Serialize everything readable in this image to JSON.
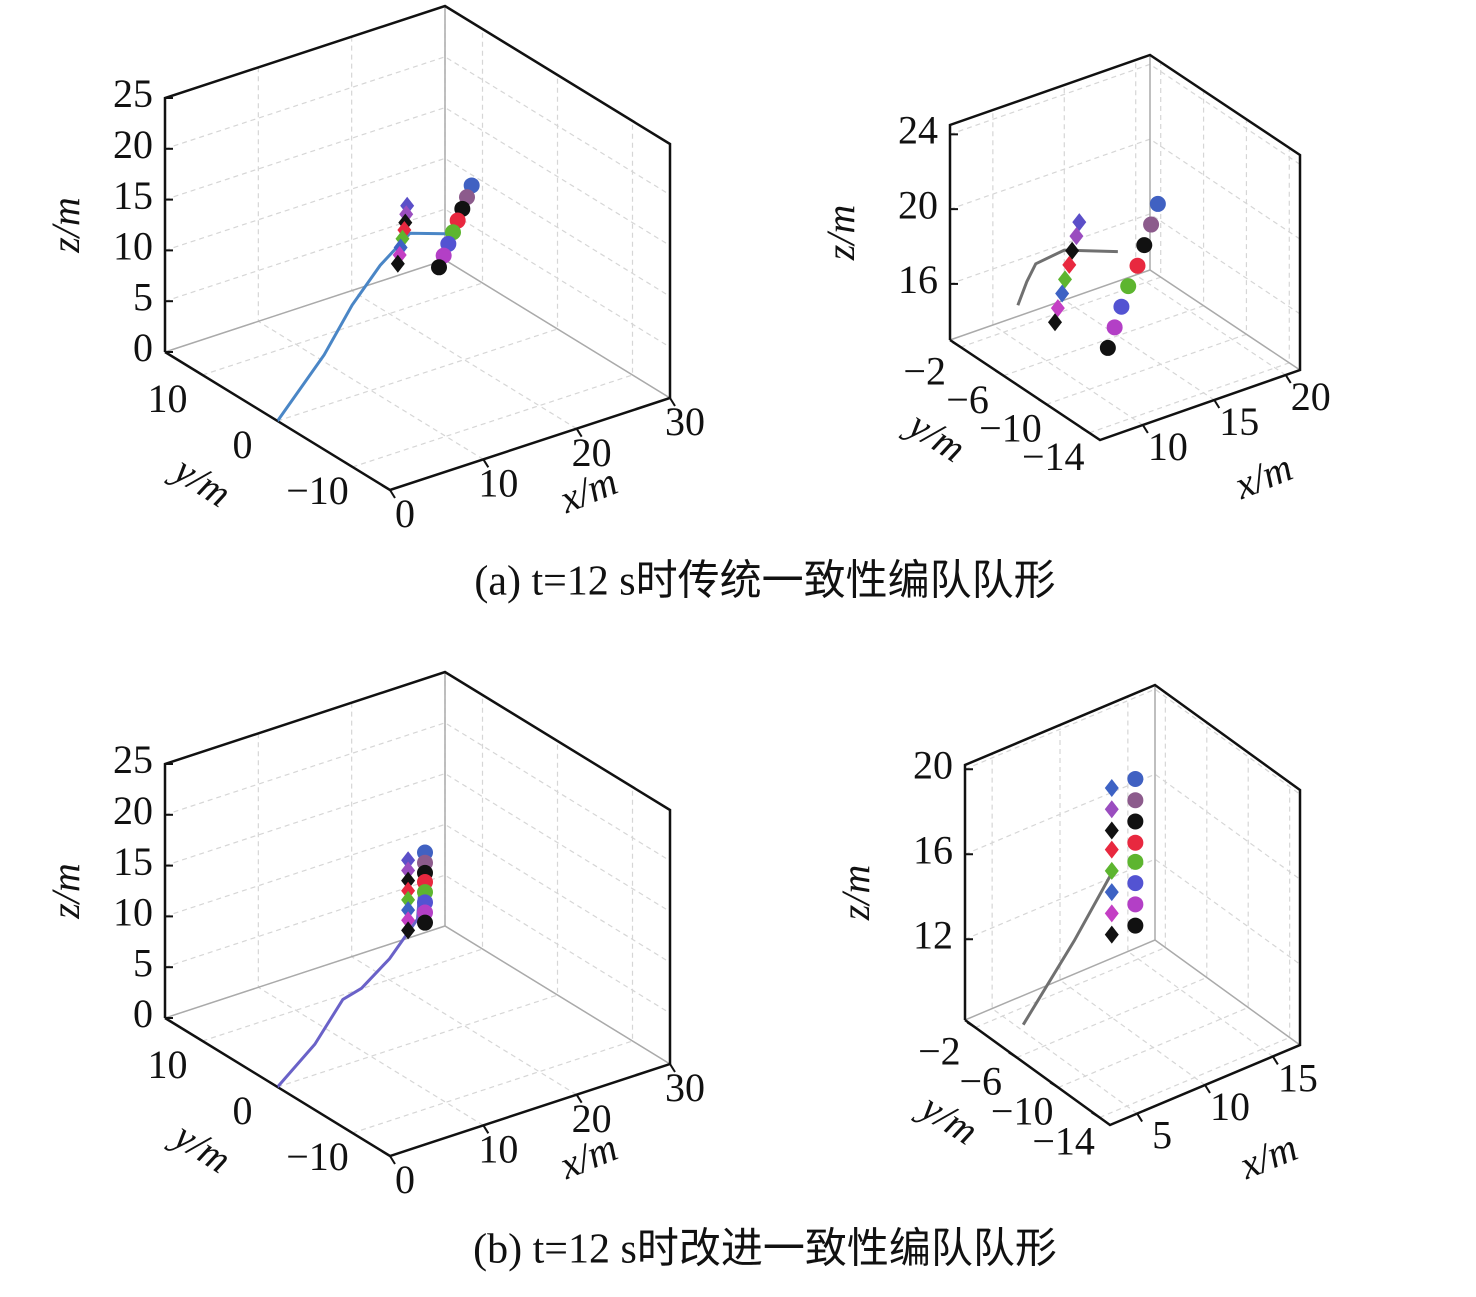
{
  "captions": [
    "(a) t=12 s时传统一致性编队队形",
    "(b) t=12 s时改进一致性编队队形"
  ],
  "chart_data": [
    {
      "type": "scatter3d",
      "xlabel": "x/m",
      "ylabel": "y/m",
      "zlabel": "z/m",
      "grid": true,
      "xlim": [
        0,
        30
      ],
      "ylim": [
        -15,
        15
      ],
      "zlim": [
        0,
        25
      ],
      "xticks": [
        0,
        10,
        20,
        30
      ],
      "yticks": [
        10,
        0,
        {
          "value": -10,
          "label": "−10"
        }
      ],
      "zticks": [
        0,
        5,
        10,
        15,
        20,
        25
      ],
      "trajectory": {
        "color": "#4a86c6",
        "x": [
          0,
          5,
          8,
          11,
          15,
          18
        ],
        "y": [
          0,
          0,
          0,
          0,
          1,
          0
        ],
        "z": [
          0,
          5,
          9,
          12,
          13.5,
          13
        ]
      },
      "series": [
        {
          "marker": "diamond",
          "x": [
            15.5,
            15.4,
            15.3,
            15.2,
            15.0,
            14.8,
            14.7,
            14.5
          ],
          "y": [
            2,
            2,
            2,
            2,
            2,
            2,
            2,
            2
          ],
          "z": [
            15.6,
            14.8,
            14.0,
            13.3,
            12.5,
            11.7,
            11.0,
            10.2
          ],
          "colors": [
            "#5b4fc8",
            "#9a4dbf",
            "#111111",
            "#e8283f",
            "#5db52f",
            "#3d62c4",
            "#c43fc4",
            "#111111"
          ]
        },
        {
          "marker": "circle",
          "x": [
            20,
            19.5,
            19,
            18.5,
            18,
            17.5,
            17,
            16.5
          ],
          "y": [
            -1,
            -1,
            -1,
            -1,
            -1,
            -1,
            -1,
            -1
          ],
          "z": [
            17.6,
            16.6,
            15.6,
            14.6,
            13.6,
            12.6,
            11.6,
            10.6
          ],
          "colors": [
            "#4061c2",
            "#8c5b8c",
            "#111111",
            "#e8283f",
            "#5db52f",
            "#5353d2",
            "#b33fc6",
            "#111111"
          ]
        }
      ]
    },
    {
      "type": "scatter3d",
      "xlabel": "x/m",
      "ylabel": "y/m",
      "zlabel": "z/m",
      "grid": true,
      "xlim": [
        7,
        21
      ],
      "ylim": [
        -15,
        -1
      ],
      "zlim": [
        13,
        24.5
      ],
      "xticks": [
        10,
        15,
        20
      ],
      "yticks": [
        {
          "value": -2,
          "label": "−2"
        },
        {
          "value": -6,
          "label": "−6"
        },
        {
          "value": -10,
          "label": "−10"
        },
        {
          "value": -14,
          "label": "−14"
        }
      ],
      "zticks": [
        16,
        20,
        24
      ],
      "trajectory": {
        "color": "#707070",
        "x": [
          8,
          9,
          10,
          12,
          15
        ],
        "y": [
          -6,
          -5.5,
          -5,
          -5,
          -6
        ],
        "z": [
          16.5,
          17.3,
          17.8,
          18,
          17.5
        ]
      },
      "series": [
        {
          "marker": "diamond",
          "x": [
            12.3,
            12.1,
            11.8,
            11.6,
            11.3,
            11.1,
            10.8,
            10.6
          ],
          "y": [
            -6,
            -6,
            -6,
            -6,
            -6,
            -6,
            -6,
            -6
          ],
          "z": [
            19.8,
            19.1,
            18.4,
            17.7,
            17.0,
            16.3,
            15.6,
            14.9
          ],
          "colors": [
            "#5b4fc8",
            "#9a4dbf",
            "#111111",
            "#e8283f",
            "#5db52f",
            "#3d62c4",
            "#c43fc4",
            "#111111"
          ]
        },
        {
          "marker": "circle",
          "x": [
            17.8,
            17.1,
            16.4,
            15.7,
            14.9,
            14.2,
            13.5,
            12.8
          ],
          "y": [
            -6,
            -6.3,
            -6.6,
            -6.9,
            -7.1,
            -7.4,
            -7.7,
            -8
          ],
          "z": [
            19.3,
            18.5,
            17.7,
            16.9,
            16.1,
            15.3,
            14.5,
            13.7
          ],
          "colors": [
            "#4061c2",
            "#8c5b8c",
            "#111111",
            "#e8283f",
            "#5db52f",
            "#5353d2",
            "#b33fc6",
            "#111111"
          ]
        }
      ]
    },
    {
      "type": "scatter3d",
      "xlabel": "x/m",
      "ylabel": "y/m",
      "zlabel": "z/m",
      "grid": true,
      "xlim": [
        0,
        30
      ],
      "ylim": [
        -15,
        15
      ],
      "zlim": [
        0,
        25
      ],
      "xticks": [
        0,
        10,
        20,
        30
      ],
      "yticks": [
        10,
        0,
        {
          "value": -10,
          "label": "−10"
        }
      ],
      "zticks": [
        0,
        5,
        10,
        15,
        20,
        25
      ],
      "trajectory": {
        "color": "#6a62c8",
        "x": [
          0,
          4,
          7,
          9,
          12,
          15,
          16
        ],
        "y": [
          0,
          0,
          0,
          0,
          0,
          0,
          1
        ],
        "z": [
          0,
          3,
          6.5,
          7,
          9,
          12,
          13.5
        ]
      },
      "series": [
        {
          "marker": "diamond",
          "x": [
            15.6,
            15.6,
            15.6,
            15.6,
            15.6,
            15.6,
            15.6,
            15.6
          ],
          "y": [
            2,
            2,
            2,
            2,
            2,
            2,
            2,
            2
          ],
          "z": [
            16.7,
            15.7,
            14.7,
            13.7,
            12.8,
            11.8,
            10.8,
            9.8
          ],
          "colors": [
            "#5b4fc8",
            "#9a4dbf",
            "#111111",
            "#e8283f",
            "#5db52f",
            "#3d62c4",
            "#c43fc4",
            "#111111"
          ]
        },
        {
          "marker": "circle",
          "x": [
            15,
            15,
            15,
            15,
            15,
            15,
            15,
            15
          ],
          "y": [
            -1,
            -1,
            -1,
            -1,
            -1,
            -1,
            -1,
            -1
          ],
          "z": [
            19,
            18,
            17,
            16.1,
            15.1,
            14.1,
            13.1,
            12.1
          ],
          "colors": [
            "#4061c2",
            "#8c5b8c",
            "#111111",
            "#e8283f",
            "#5db52f",
            "#5353d2",
            "#b33fc6",
            "#111111"
          ]
        }
      ]
    },
    {
      "type": "scatter3d",
      "xlabel": "x/m",
      "ylabel": "y/m",
      "zlabel": "z/m",
      "grid": true,
      "xlim": [
        3,
        17
      ],
      "ylim": [
        -15,
        -1
      ],
      "zlim": [
        8.2,
        20.2
      ],
      "xticks": [
        5,
        10,
        15
      ],
      "yticks": [
        {
          "value": -2,
          "label": "−2"
        },
        {
          "value": -6,
          "label": "−6"
        },
        {
          "value": -10,
          "label": "−10"
        },
        {
          "value": -14,
          "label": "−14"
        }
      ],
      "zticks": [
        12,
        16,
        20
      ],
      "trajectory": {
        "color": "#707070",
        "x": [
          5,
          8,
          10
        ],
        "y": [
          -4,
          -5,
          -6
        ],
        "z": [
          8.5,
          12,
          15
        ]
      },
      "series": [
        {
          "marker": "diamond",
          "x": [
            10,
            10,
            10,
            10,
            10,
            10,
            10,
            10
          ],
          "y": [
            -6,
            -6,
            -6,
            -6,
            -6,
            -6,
            -6,
            -6
          ],
          "z": [
            19,
            18,
            17,
            16.1,
            15.1,
            14.1,
            13.1,
            12.1
          ],
          "colors": [
            "#3d62c4",
            "#9a4dbf",
            "#111111",
            "#e8283f",
            "#5db52f",
            "#3d62c4",
            "#c43fc4",
            "#111111"
          ]
        },
        {
          "marker": "circle",
          "x": [
            12.5,
            12.5,
            12.5,
            12.5,
            12.5,
            12.5,
            12.5,
            12.5
          ],
          "y": [
            -5,
            -5,
            -5,
            -5,
            -5,
            -5,
            -5,
            -5
          ],
          "z": [
            18.4,
            17.4,
            16.4,
            15.4,
            14.5,
            13.5,
            12.5,
            11.5
          ],
          "colors": [
            "#4061c2",
            "#8c5b8c",
            "#111111",
            "#e8283f",
            "#5db52f",
            "#5353d2",
            "#b33fc6",
            "#111111"
          ]
        }
      ]
    }
  ]
}
